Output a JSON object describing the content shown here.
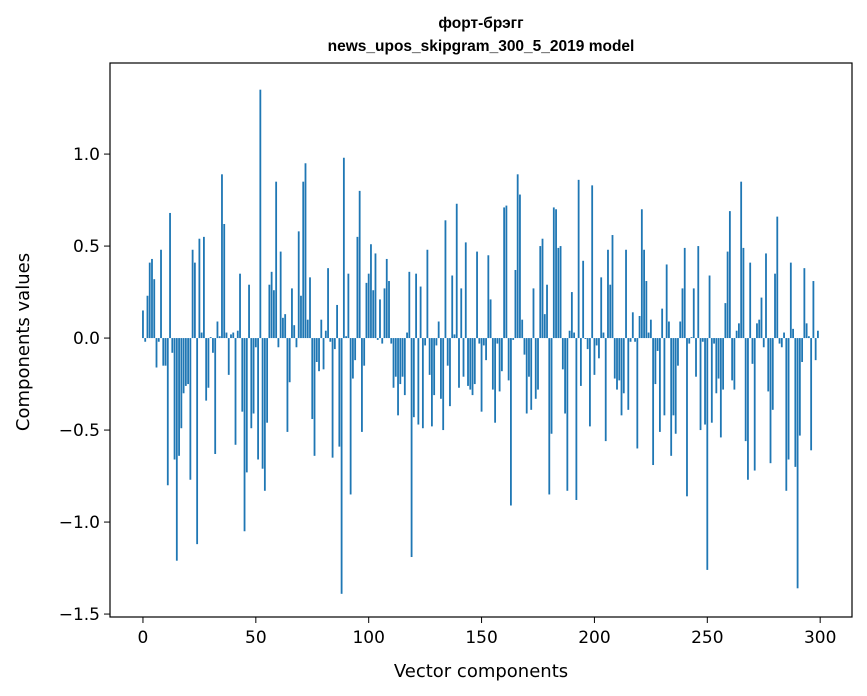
{
  "chart_data": {
    "type": "bar",
    "title_line1": "форт-брэгг",
    "title_line2": "news_upos_skipgram_300_5_2019 model",
    "xlabel": "Vector components",
    "ylabel": "Components values",
    "xlim": [
      -14.6,
      314.1
    ],
    "ylim": [
      -1.516,
      1.495
    ],
    "xticks": [
      0,
      50,
      100,
      150,
      200,
      250,
      300
    ],
    "xtick_labels": [
      "0",
      "50",
      "100",
      "150",
      "200",
      "250",
      "300"
    ],
    "yticks": [
      1.0,
      0.5,
      0.0,
      -0.5,
      -1.0,
      -1.5
    ],
    "ytick_labels": [
      "1.0",
      "0.5",
      "0.0",
      "−0.5",
      "−1.0",
      "−1.5"
    ],
    "grid": false,
    "bar_color": "#1f77b4",
    "values": [
      0.15,
      -0.02,
      0.23,
      0.41,
      0.43,
      0.32,
      -0.16,
      -0.02,
      0.48,
      -0.15,
      -0.15,
      -0.8,
      0.68,
      -0.08,
      -0.66,
      -1.21,
      -0.64,
      -0.49,
      -0.3,
      -0.26,
      -0.25,
      -0.77,
      0.48,
      0.41,
      -1.12,
      0.54,
      0.03,
      0.55,
      -0.34,
      -0.27,
      0.005,
      -0.08,
      -0.63,
      0.09,
      0.01,
      0.89,
      0.62,
      0.03,
      -0.2,
      0.02,
      0.03,
      -0.58,
      0.04,
      0.35,
      -0.4,
      -1.05,
      -0.73,
      0.29,
      -0.49,
      -0.41,
      -0.05,
      -0.66,
      1.35,
      -0.71,
      -0.83,
      -0.46,
      0.29,
      0.36,
      0.26,
      0.85,
      -0.05,
      0.47,
      0.11,
      0.13,
      -0.51,
      -0.24,
      0.27,
      0.07,
      -0.05,
      0.58,
      0.23,
      0.85,
      0.95,
      0.1,
      0.33,
      -0.44,
      -0.64,
      -0.13,
      -0.18,
      0.1,
      -0.17,
      0.04,
      0.38,
      -0.02,
      -0.65,
      -0.06,
      0.18,
      -0.59,
      -1.39,
      0.98,
      0.01,
      0.35,
      -0.85,
      -0.22,
      -0.12,
      0.55,
      0.8,
      -0.51,
      -0.15,
      0.3,
      0.35,
      0.51,
      0.26,
      0.46,
      -0.01,
      0.21,
      -0.03,
      0.27,
      0.43,
      0.31,
      -0.03,
      -0.27,
      -0.21,
      -0.42,
      -0.25,
      -0.21,
      -0.31,
      0.03,
      0.36,
      -1.19,
      -0.43,
      0.35,
      -0.47,
      0.28,
      -0.49,
      -0.04,
      0.48,
      -0.2,
      -0.48,
      -0.31,
      -0.04,
      0.09,
      -0.33,
      -0.5,
      0.64,
      -0.15,
      -0.37,
      0.34,
      0.02,
      0.73,
      -0.27,
      0.27,
      -0.21,
      0.52,
      -0.26,
      -0.28,
      -0.31,
      -0.25,
      0.47,
      -0.03,
      -0.4,
      -0.04,
      -0.12,
      0.45,
      0.21,
      -0.28,
      -0.46,
      -0.03,
      -0.29,
      -0.18,
      0.71,
      0.72,
      -0.23,
      -0.91,
      -0.01,
      0.37,
      0.89,
      0.78,
      0.1,
      -0.09,
      -0.41,
      -0.21,
      -0.39,
      0.27,
      -0.33,
      -0.28,
      0.5,
      0.54,
      0.13,
      0.29,
      -0.85,
      -0.52,
      0.71,
      0.7,
      0.49,
      0.5,
      -0.17,
      -0.41,
      -0.83,
      0.04,
      0.25,
      0.03,
      -0.88,
      0.86,
      -0.26,
      0.42,
      -0.005,
      -0.06,
      -0.48,
      0.83,
      -0.2,
      -0.04,
      -0.11,
      0.33,
      0.03,
      -0.56,
      0.48,
      0.29,
      0.56,
      -0.22,
      -0.28,
      -0.23,
      -0.42,
      -0.3,
      0.48,
      -0.39,
      -0.02,
      0.14,
      -0.02,
      -0.6,
      0.12,
      0.7,
      0.48,
      0.31,
      0.03,
      0.1,
      -0.69,
      -0.25,
      -0.07,
      -0.51,
      0.16,
      -0.42,
      0.4,
      0.09,
      -0.64,
      -0.42,
      -0.52,
      -0.15,
      0.09,
      0.27,
      0.49,
      -0.86,
      -0.03,
      0.005,
      0.27,
      -0.21,
      0.5,
      -0.5,
      -0.02,
      -0.47,
      -1.26,
      0.34,
      -0.46,
      -0.03,
      -0.3,
      -0.22,
      -0.54,
      -0.28,
      0.19,
      0.47,
      0.69,
      -0.23,
      -0.28,
      0.04,
      0.08,
      0.85,
      0.49,
      -0.56,
      -0.77,
      0.41,
      -0.14,
      -0.72,
      0.08,
      0.1,
      0.22,
      -0.05,
      0.46,
      -0.29,
      -0.68,
      -0.39,
      0.35,
      0.66,
      -0.03,
      -0.05,
      0.03,
      -0.83,
      -0.66,
      0.41,
      0.05,
      -0.7,
      -1.36,
      -0.53,
      -0.13,
      0.38,
      0.08,
      0.01,
      -0.61,
      0.31,
      -0.12,
      0.04
    ]
  }
}
